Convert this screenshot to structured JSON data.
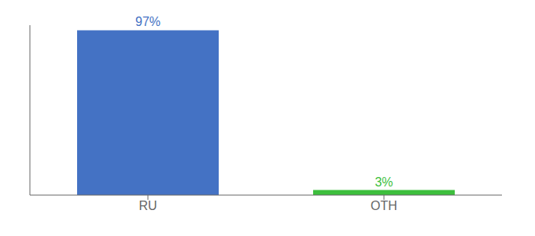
{
  "chart_data": {
    "type": "bar",
    "categories": [
      "RU",
      "OTH"
    ],
    "values": [
      97,
      3
    ],
    "value_labels": [
      "97%",
      "3%"
    ],
    "data_labels": true,
    "colors": [
      "#4472c4",
      "#3dbf3d"
    ],
    "ylim": [
      0,
      100
    ],
    "yticks": [],
    "grid": false,
    "tick_labels": "x"
  }
}
